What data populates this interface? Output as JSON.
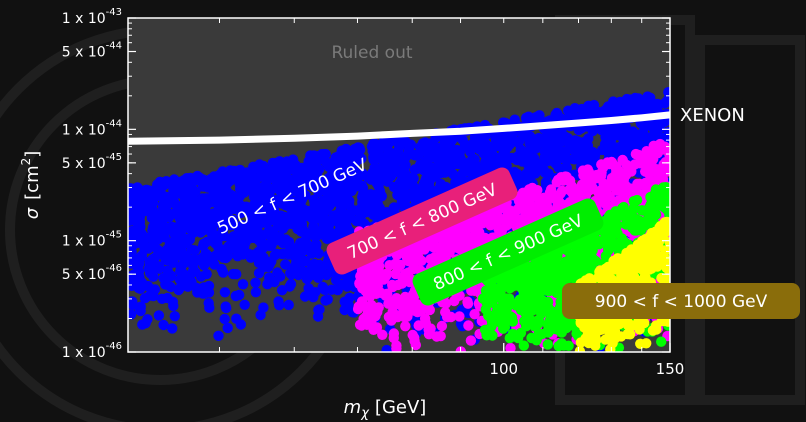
{
  "chart_data": {
    "type": "scatter",
    "xlabel_symbol": "m",
    "xlabel_sub": "χ",
    "xlabel_unit": "[GeV]",
    "ylabel_symbol": "σ",
    "ylabel_unit": "[cm",
    "ylabel_unit_sup": "2",
    "ylabel_unit_close": "]",
    "x_scale": "log",
    "y_scale": "log",
    "xlim": [
      40,
      150
    ],
    "ylim": [
      1e-46,
      1e-43
    ],
    "x_ticks": [
      {
        "value": 100,
        "label": "100"
      },
      {
        "value": 150,
        "label": "150"
      }
    ],
    "y_ticks": [
      {
        "value": 1e-43,
        "mant": "1 x 10",
        "exp": "-43"
      },
      {
        "value": 5e-44,
        "mant": "5 x 10",
        "exp": "-44"
      },
      {
        "value": 1e-44,
        "mant": "1 x 10",
        "exp": "-44"
      },
      {
        "value": 5e-45,
        "mant": "5 x 10",
        "exp": "-45"
      },
      {
        "value": 1e-45,
        "mant": "1 x 10",
        "exp": "-45"
      },
      {
        "value": 5e-46,
        "mant": "5 x 10",
        "exp": "-46"
      },
      {
        "value": 1e-46,
        "mant": "1 x 10",
        "exp": "-46"
      }
    ],
    "excluded_region_label": "Ruled out",
    "limit_curve": {
      "name": "XENON",
      "color": "#ffffff",
      "x": [
        40,
        50,
        60,
        70,
        80,
        90,
        100,
        110,
        120,
        130,
        140,
        150
      ],
      "y": [
        7.8e-45,
        8e-45,
        8.3e-45,
        8.7e-45,
        9.2e-45,
        9.6e-45,
        1.02e-44,
        1.08e-44,
        1.14e-44,
        1.2e-44,
        1.27e-44,
        1.35e-44
      ]
    },
    "series": [
      {
        "name": "500 < f < 700 GeV",
        "color": "#0000ff",
        "label_bg": "",
        "label_text_color": "#ffffff",
        "upper": {
          "x": [
            40,
            150
          ],
          "y": [
            3e-45,
            2.2e-44
          ]
        },
        "lower": {
          "x": [
            40,
            60,
            100,
            150
          ],
          "y": [
            1e-46,
            1e-46,
            1e-46,
            1e-46
          ]
        },
        "ragged_left_lower": {
          "x": [
            40,
            50,
            60,
            70
          ],
          "y": [
            1.2e-46,
            1.5e-46,
            2e-46,
            1e-46
          ]
        }
      },
      {
        "name": "700 < f < 800 GeV",
        "color": "#ff00ff",
        "label_bg": "#e8207a",
        "label_text_color": "#ffffff",
        "upper": {
          "x": [
            70,
            100,
            150
          ],
          "y": [
            1.2e-45,
            2.5e-45,
            8e-45
          ]
        },
        "lower": {
          "x": [
            70,
            150
          ],
          "y": [
            1e-46,
            1e-46
          ]
        }
      },
      {
        "name": "800 < f < 900 GeV",
        "color": "#00ff00",
        "label_bg": "#00ee00",
        "label_text_color": "#ffffff",
        "upper": {
          "x": [
            95,
            120,
            150
          ],
          "y": [
            6e-46,
            1.2e-45,
            3.5e-45
          ]
        },
        "lower": {
          "x": [
            95,
            150
          ],
          "y": [
            1e-46,
            1e-46
          ]
        }
      },
      {
        "name": "900 < f < 1000 GeV",
        "color": "#ffff00",
        "label_bg": "#8a6d0b",
        "label_text_color": "#ffffff",
        "upper": {
          "x": [
            120,
            135,
            150
          ],
          "y": [
            4e-46,
            8e-46,
            1.6e-45
          ]
        },
        "lower": {
          "x": [
            120,
            150
          ],
          "y": [
            1e-46,
            1e-46
          ]
        }
      }
    ]
  }
}
